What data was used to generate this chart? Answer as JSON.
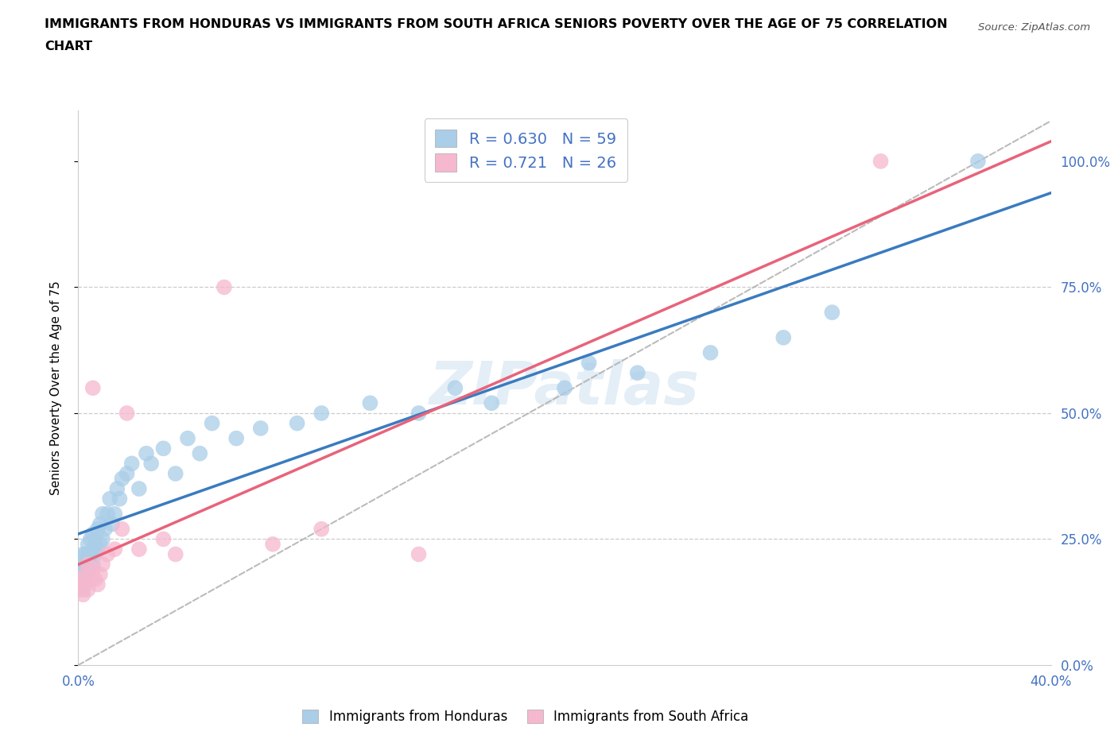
{
  "title_line1": "IMMIGRANTS FROM HONDURAS VS IMMIGRANTS FROM SOUTH AFRICA SENIORS POVERTY OVER THE AGE OF 75 CORRELATION",
  "title_line2": "CHART",
  "source": "Source: ZipAtlas.com",
  "ylabel": "Seniors Poverty Over the Age of 75",
  "xlabel_blue": "Immigrants from Honduras",
  "xlabel_pink": "Immigrants from South Africa",
  "R_blue": 0.63,
  "N_blue": 59,
  "R_pink": 0.721,
  "N_pink": 26,
  "color_blue": "#aacde8",
  "color_pink": "#f5b8ce",
  "color_blue_line": "#3a7bbf",
  "color_pink_line": "#e8637a",
  "color_dashed": "#b0b0b0",
  "watermark_color": "#cfe0f0",
  "xlim": [
    0.0,
    0.4
  ],
  "ylim": [
    0.0,
    1.1
  ],
  "yticks": [
    0.0,
    0.25,
    0.5,
    0.75,
    1.0
  ],
  "ytick_labels": [
    "0.0%",
    "25.0%",
    "50.0%",
    "75.0%",
    "100.0%"
  ],
  "xticks": [
    0.0,
    0.1,
    0.2,
    0.3,
    0.4
  ],
  "xtick_labels": [
    "0.0%",
    "",
    "",
    "",
    "40.0%"
  ],
  "blue_x": [
    0.001,
    0.001,
    0.002,
    0.002,
    0.002,
    0.002,
    0.003,
    0.003,
    0.003,
    0.004,
    0.004,
    0.004,
    0.005,
    0.005,
    0.005,
    0.006,
    0.006,
    0.006,
    0.007,
    0.007,
    0.008,
    0.008,
    0.009,
    0.009,
    0.01,
    0.01,
    0.011,
    0.012,
    0.013,
    0.014,
    0.015,
    0.016,
    0.017,
    0.018,
    0.02,
    0.022,
    0.025,
    0.028,
    0.03,
    0.035,
    0.04,
    0.045,
    0.05,
    0.055,
    0.065,
    0.075,
    0.09,
    0.1,
    0.12,
    0.14,
    0.155,
    0.17,
    0.2,
    0.21,
    0.23,
    0.26,
    0.29,
    0.31,
    0.37
  ],
  "blue_y": [
    0.17,
    0.19,
    0.15,
    0.18,
    0.2,
    0.22,
    0.17,
    0.2,
    0.22,
    0.19,
    0.22,
    0.24,
    0.2,
    0.22,
    0.25,
    0.2,
    0.23,
    0.26,
    0.22,
    0.25,
    0.23,
    0.27,
    0.24,
    0.28,
    0.25,
    0.3,
    0.27,
    0.3,
    0.33,
    0.28,
    0.3,
    0.35,
    0.33,
    0.37,
    0.38,
    0.4,
    0.35,
    0.42,
    0.4,
    0.43,
    0.38,
    0.45,
    0.42,
    0.48,
    0.45,
    0.47,
    0.48,
    0.5,
    0.52,
    0.5,
    0.55,
    0.52,
    0.55,
    0.6,
    0.58,
    0.62,
    0.65,
    0.7,
    1.0
  ],
  "pink_x": [
    0.001,
    0.001,
    0.002,
    0.002,
    0.003,
    0.004,
    0.004,
    0.005,
    0.006,
    0.006,
    0.007,
    0.008,
    0.009,
    0.01,
    0.012,
    0.015,
    0.018,
    0.02,
    0.025,
    0.035,
    0.04,
    0.06,
    0.08,
    0.1,
    0.14,
    0.33
  ],
  "pink_y": [
    0.15,
    0.17,
    0.14,
    0.16,
    0.18,
    0.15,
    0.2,
    0.17,
    0.55,
    0.19,
    0.17,
    0.16,
    0.18,
    0.2,
    0.22,
    0.23,
    0.27,
    0.5,
    0.23,
    0.25,
    0.22,
    0.75,
    0.24,
    0.27,
    0.22,
    1.0
  ]
}
